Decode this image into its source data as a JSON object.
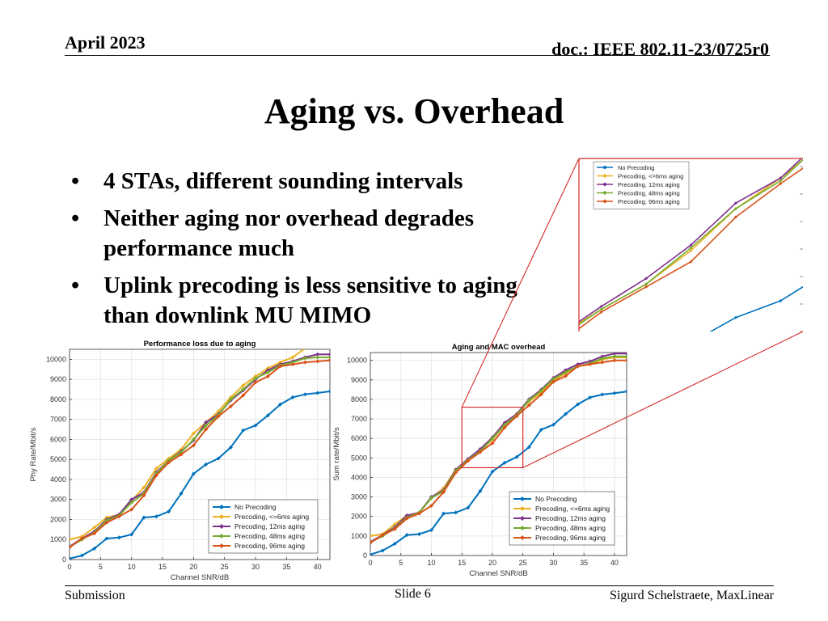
{
  "header": {
    "date": "April 2023",
    "doc": "doc.: IEEE 802.11-23/0725r0"
  },
  "slide": {
    "title": "Aging vs. Overhead",
    "bullets": [
      "4 STAs, different sounding intervals",
      "Neither aging nor overhead degrades performance much",
      "Uplink precoding is less sensitive to aging than downlink MU MIMO"
    ],
    "bullet_char": "•"
  },
  "footer": {
    "left": "Submission",
    "center": "Slide 6",
    "right": "Sigurd Schelstraete, MaxLinear"
  },
  "colors": {
    "zoom_box": "#d42a2a"
  },
  "chart_data": [
    {
      "type": "line",
      "title": "Performance loss due to aging",
      "xlabel": "Channel SNR/dB",
      "ylabel": "Phy Rate/Mbit/s",
      "xlim": [
        0,
        42
      ],
      "ylim": [
        0,
        10500
      ],
      "xticks": [
        0,
        5,
        10,
        15,
        20,
        25,
        30,
        35,
        40
      ],
      "yticks": [
        0,
        1000,
        2000,
        3000,
        4000,
        5000,
        6000,
        7000,
        8000,
        9000,
        10000
      ],
      "grid": true,
      "legend_position": "bottom-right",
      "x": [
        0,
        2,
        4,
        6,
        8,
        10,
        12,
        14,
        16,
        18,
        20,
        22,
        24,
        26,
        28,
        30,
        32,
        34,
        36,
        38,
        40,
        42
      ],
      "series": [
        {
          "name": "No Precoding",
          "color": "#0072bd",
          "values": [
            50,
            200,
            550,
            1050,
            1100,
            1250,
            2100,
            2150,
            2400,
            3300,
            4280,
            4750,
            5050,
            5600,
            6450,
            6700,
            7200,
            7750,
            8100,
            8250,
            8320,
            8400
          ]
        },
        {
          "name": "Precoding, <=6ms aging",
          "color": "#edb120",
          "values": [
            1000,
            1150,
            1600,
            2100,
            2250,
            2950,
            3600,
            4550,
            5050,
            5500,
            6300,
            6850,
            7400,
            8100,
            8700,
            9150,
            9550,
            9850,
            10100,
            10550,
            10600,
            10600
          ]
        },
        {
          "name": "Precoding, 12ms aging",
          "color": "#7e2f8e",
          "values": [
            650,
            1050,
            1400,
            2000,
            2250,
            3000,
            3350,
            4350,
            4950,
            5400,
            5950,
            6850,
            7250,
            7950,
            8450,
            9000,
            9450,
            9750,
            9900,
            10100,
            10250,
            10250
          ]
        },
        {
          "name": "Precoding, 48ms aging",
          "color": "#77ac30",
          "values": [
            620,
            1000,
            1350,
            1950,
            2200,
            2850,
            3300,
            4300,
            4950,
            5350,
            6000,
            6700,
            7200,
            8000,
            8500,
            9050,
            9350,
            9700,
            9850,
            10050,
            10100,
            10100
          ]
        },
        {
          "name": "Precoding, 96ms aging",
          "color": "#d95319",
          "values": [
            600,
            1050,
            1300,
            1850,
            2150,
            2500,
            3200,
            4200,
            4850,
            5250,
            5700,
            6500,
            7150,
            7650,
            8200,
            8850,
            9150,
            9650,
            9750,
            9850,
            9900,
            9950
          ]
        }
      ]
    },
    {
      "type": "line",
      "title": "Aging and MAC overhead",
      "xlabel": "Channel SNR/dB",
      "ylabel": "Sum rate/Mbit/s",
      "xlim": [
        0,
        42
      ],
      "ylim": [
        0,
        10400
      ],
      "xticks": [
        0,
        5,
        10,
        15,
        20,
        25,
        30,
        35,
        40
      ],
      "yticks": [
        0,
        1000,
        2000,
        3000,
        4000,
        5000,
        6000,
        7000,
        8000,
        9000,
        10000
      ],
      "grid": true,
      "legend_position": "bottom-right",
      "x": [
        0,
        2,
        4,
        6,
        8,
        10,
        12,
        14,
        16,
        18,
        20,
        22,
        24,
        26,
        28,
        30,
        32,
        34,
        36,
        38,
        40,
        42
      ],
      "series": [
        {
          "name": "No Precoding",
          "color": "#0072bd",
          "values": [
            50,
            250,
            600,
            1050,
            1100,
            1300,
            2150,
            2200,
            2450,
            3300,
            4300,
            4750,
            5050,
            5550,
            6450,
            6700,
            7250,
            7750,
            8100,
            8250,
            8320,
            8400
          ]
        },
        {
          "name": "Precoding, <=6ms aging",
          "color": "#edb120",
          "values": [
            1000,
            1100,
            1600,
            2050,
            2200,
            2950,
            3450,
            4400,
            4900,
            5350,
            5950,
            6700,
            7250,
            7900,
            8350,
            8950,
            9350,
            9700,
            9800,
            10050,
            10150,
            10150
          ]
        },
        {
          "name": "Precoding, 12ms aging",
          "color": "#7e2f8e",
          "values": [
            700,
            1050,
            1450,
            2050,
            2200,
            3000,
            3350,
            4400,
            4950,
            5450,
            6050,
            6800,
            7250,
            8000,
            8500,
            9100,
            9500,
            9800,
            9950,
            10200,
            10350,
            10350
          ]
        },
        {
          "name": "Precoding, 48ms aging",
          "color": "#77ac30",
          "values": [
            680,
            1000,
            1400,
            1950,
            2200,
            2950,
            3300,
            4350,
            4900,
            5350,
            6000,
            6700,
            7200,
            7950,
            8450,
            9050,
            9400,
            9700,
            9850,
            10100,
            10200,
            10200
          ]
        },
        {
          "name": "Precoding, 96ms aging",
          "color": "#d95319",
          "values": [
            650,
            1050,
            1350,
            1900,
            2150,
            2550,
            3250,
            4250,
            4850,
            5300,
            5750,
            6550,
            7150,
            7700,
            8250,
            8900,
            9200,
            9700,
            9800,
            9900,
            10000,
            10000
          ]
        }
      ]
    }
  ]
}
